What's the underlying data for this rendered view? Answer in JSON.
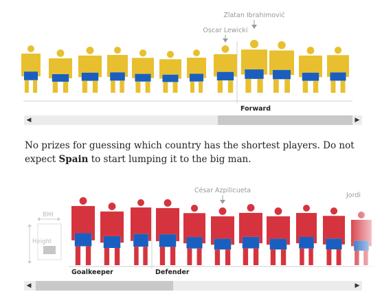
{
  "strip1": {
    "annotations": [
      "Zlatan Ibrahimović",
      "Oscar Lewicki"
    ],
    "position_label": "Forward",
    "colors": {
      "body": "#e8c02f",
      "shorts": "#1a5fbf"
    }
  },
  "paragraph": {
    "before": "No prizes for guessing which country has the shortest players. Do not expect ",
    "bold": "Spain",
    "after": " to start lumping it to the big man."
  },
  "strip2": {
    "annotations": [
      "César Azpilicueta",
      "Jordi"
    ],
    "position_labels": [
      "Goalkeeper",
      "Defender"
    ],
    "legend": {
      "bmi": "BMI",
      "height": "Height"
    },
    "colors": {
      "body": "#d5343f",
      "shorts": "#1a5fbf"
    }
  },
  "scrollbars": {
    "left_arrow": "◀",
    "right_arrow": "▶"
  }
}
